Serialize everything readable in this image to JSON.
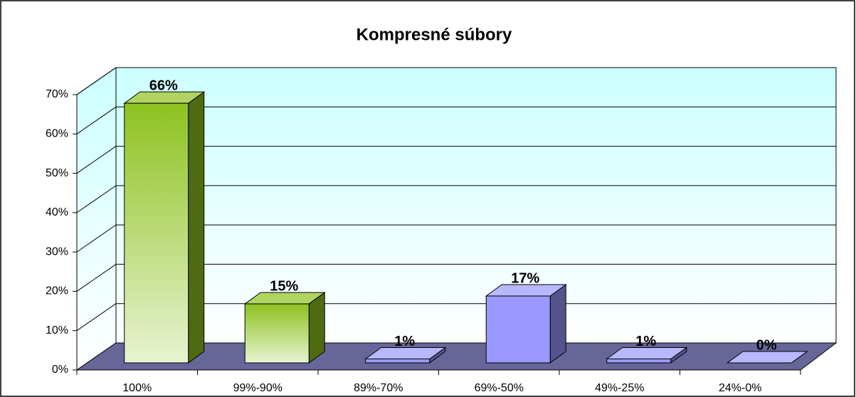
{
  "chart_data": {
    "type": "bar3d",
    "title": "Kompresné súbory",
    "categories": [
      "100%",
      "99%-90%",
      "89%-70%",
      "69%-50%",
      "49%-25%",
      "24%-0%"
    ],
    "values": [
      66,
      15,
      1,
      17,
      1,
      0
    ],
    "value_labels": [
      "66%",
      "15%",
      "1%",
      "17%",
      "1%",
      "0%"
    ],
    "colors": [
      "#8dc21f",
      "#8dc21f",
      "#9999ff",
      "#9999ff",
      "#9999ff",
      "#9999ff"
    ],
    "ylim": [
      0,
      70
    ],
    "yticks": [
      {
        "value": 0,
        "label": "0%"
      },
      {
        "value": 10,
        "label": "10%"
      },
      {
        "value": 20,
        "label": "20%"
      },
      {
        "value": 30,
        "label": "30%"
      },
      {
        "value": 40,
        "label": "40%"
      },
      {
        "value": 50,
        "label": "50%"
      },
      {
        "value": 60,
        "label": "60%"
      },
      {
        "value": 70,
        "label": "70%"
      }
    ],
    "grid": true
  }
}
